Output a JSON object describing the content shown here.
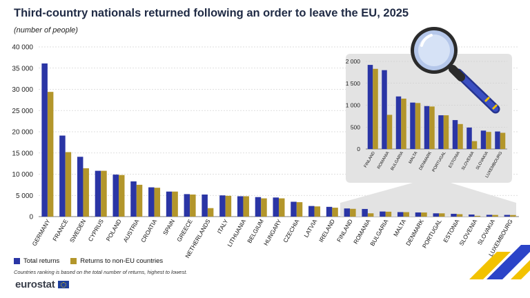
{
  "title": "Third-country nationals returned following an order to leave the EU, 2025",
  "subtitle": "(number of people)",
  "colors": {
    "total": "#2a35a5",
    "non_eu": "#b3962b",
    "inset_bg": "#e3e3e3",
    "grid": "#d4d4d4"
  },
  "legend": [
    {
      "label": "Total returns",
      "color": "#2a35a5"
    },
    {
      "label": "Returns to non-EU countries",
      "color": "#b3962b"
    }
  ],
  "note": "Countries ranking is based on the total number of returns, highest to lowest.",
  "logo": {
    "text": "eurostat",
    "icon": "eu-flag-icon"
  },
  "decoration": {
    "icon": "magnifying-glass-icon"
  },
  "chart_data": [
    {
      "type": "bar",
      "categories": [
        "GERMANY",
        "FRANCE",
        "SWEDEN",
        "CYPRUS",
        "POLAND",
        "AUSTRIA",
        "CROATIA",
        "SPAIN",
        "GREECE",
        "NETHERLANDS",
        "ITALY",
        "LITHUANIA",
        "BELGIUM",
        "HUNGARY",
        "CZECHIA",
        "LATVIA",
        "IRELAND",
        "FINLAND",
        "ROMANIA",
        "BULGARIA",
        "MALTA",
        "DENMARK",
        "PORTUGAL",
        "ESTONIA",
        "SLOVENIA",
        "SLOVAKIA",
        "LUXEMBOURG"
      ],
      "series": [
        {
          "name": "Total returns",
          "values": [
            36100,
            19100,
            14100,
            10800,
            9900,
            8300,
            6900,
            5900,
            5300,
            5200,
            5000,
            4800,
            4600,
            4500,
            3500,
            2500,
            2300,
            1920,
            1800,
            1200,
            1060,
            980,
            770,
            660,
            490,
            420,
            400
          ]
        },
        {
          "name": "Returns to non-EU countries",
          "values": [
            29400,
            15200,
            11400,
            10800,
            9800,
            7500,
            6800,
            5900,
            5200,
            2000,
            4900,
            4800,
            4300,
            4300,
            3400,
            2400,
            2100,
            1830,
            780,
            1150,
            1050,
            970,
            770,
            570,
            180,
            390,
            370
          ]
        }
      ],
      "ylim": [
        0,
        40000
      ],
      "yticks": [
        "0",
        "5 000",
        "10 000",
        "15 000",
        "20 000",
        "25 000",
        "30 000",
        "35 000",
        "40 000"
      ],
      "grid": true
    },
    {
      "type": "bar",
      "categories": [
        "FINLAND",
        "ROMANIA",
        "BULGARIA",
        "MALTA",
        "DENMARK",
        "PORTUGAL",
        "ESTONIA",
        "SLOVENIA",
        "SLOVAKIA",
        "LUXEMBOURG"
      ],
      "series": [
        {
          "name": "Total returns",
          "values": [
            1920,
            1800,
            1200,
            1060,
            980,
            770,
            660,
            490,
            420,
            400
          ]
        },
        {
          "name": "Returns to non-EU countries",
          "values": [
            1830,
            780,
            1150,
            1050,
            970,
            770,
            570,
            180,
            390,
            370
          ]
        }
      ],
      "ylim": [
        0,
        2000
      ],
      "yticks": [
        "0",
        "500",
        "1 000",
        "1 500",
        "2 000"
      ],
      "grid": true
    }
  ]
}
